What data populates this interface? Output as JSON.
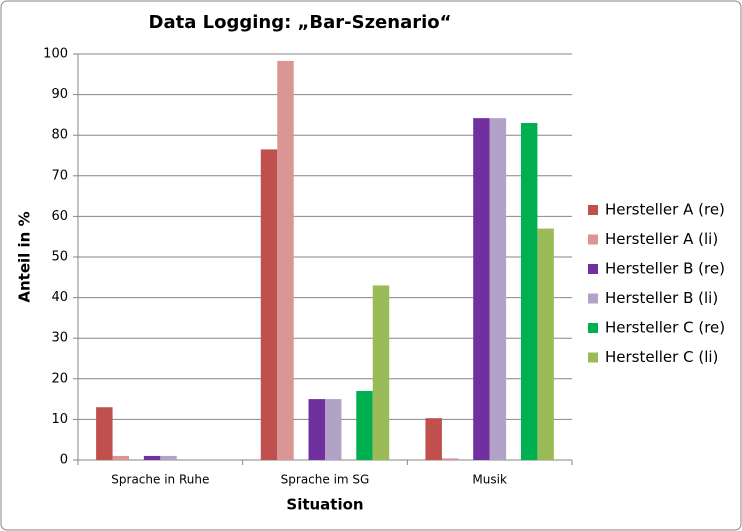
{
  "chart_data": {
    "type": "bar",
    "title": "Data Logging: „Bar-Szenario“",
    "x_label": "Situation",
    "y_label": "Anteil in %",
    "categories": [
      "Sprache in Ruhe",
      "Sprache im SG",
      "Musik"
    ],
    "series": [
      {
        "name": "Hersteller A (re)",
        "color": "#c0504d",
        "values": [
          13,
          76.5,
          10.3
        ]
      },
      {
        "name": "Hersteller A (li)",
        "color": "#d99694",
        "values": [
          1,
          98.3,
          0.4
        ]
      },
      {
        "name": "Hersteller B (re)",
        "color": "#7030a0",
        "values": [
          1,
          15,
          84.2
        ]
      },
      {
        "name": "Hersteller B (li)",
        "color": "#b3a2c7",
        "values": [
          1,
          15,
          84.2
        ]
      },
      {
        "name": "Hersteller C (re)",
        "color": "#00b050",
        "values": [
          0,
          17,
          83
        ]
      },
      {
        "name": "Hersteller C (li)",
        "color": "#9bbb59",
        "values": [
          0,
          43,
          57
        ]
      }
    ],
    "ylim": [
      0,
      100
    ],
    "yticks": [
      0,
      10,
      20,
      30,
      40,
      50,
      60,
      70,
      80,
      90,
      100
    ],
    "grid": true,
    "legend": "right"
  }
}
